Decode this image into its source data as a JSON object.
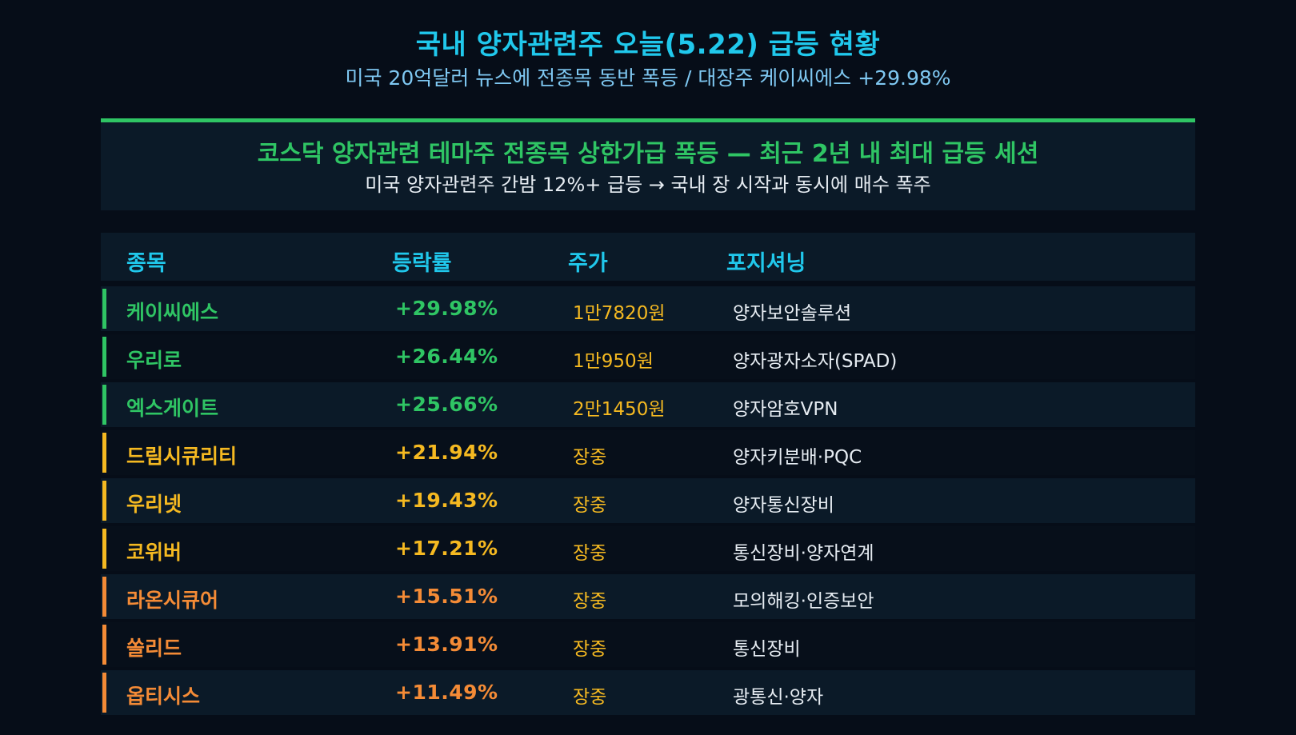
{
  "title": "국내 양자관련주 오늘(5.22) 급등 현황",
  "subtitle": "미국 20억달러 뉴스에 전종목 동반 폭등 / 대장주 케이씨에스 +29.98%",
  "banner": {
    "title": "코스닥 양자관련 테마주 전종목 상한가급 폭등 — 최근 2년 내 최대 급등 세션",
    "subtitle": "미국 양자관련주 간밤 12%+ 급등 → 국내 장 시작과 동시에 매수 폭주",
    "accent_color": "#2fc564"
  },
  "table": {
    "headers": {
      "name": "종목",
      "rate": "등락률",
      "price": "주가",
      "position": "포지셔닝"
    },
    "rows": [
      {
        "name": "케이씨에스",
        "rate": "+29.98%",
        "price": "1만7820원",
        "position": "양자보안솔루션",
        "color": "#2fc564"
      },
      {
        "name": "우리로",
        "rate": "+26.44%",
        "price": "1만950원",
        "position": "양자광자소자(SPAD)",
        "color": "#2fc564"
      },
      {
        "name": "엑스게이트",
        "rate": "+25.66%",
        "price": "2만1450원",
        "position": "양자암호VPN",
        "color": "#2fc564"
      },
      {
        "name": "드림시큐리티",
        "rate": "+21.94%",
        "price": "장중",
        "position": "양자키분배·PQC",
        "color": "#f5b921"
      },
      {
        "name": "우리넷",
        "rate": "+19.43%",
        "price": "장중",
        "position": "양자통신장비",
        "color": "#f5b921"
      },
      {
        "name": "코위버",
        "rate": "+17.21%",
        "price": "장중",
        "position": "통신장비·양자연계",
        "color": "#f5b921"
      },
      {
        "name": "라온시큐어",
        "rate": "+15.51%",
        "price": "장중",
        "position": "모의해킹·인증보안",
        "color": "#f48b36"
      },
      {
        "name": "쏠리드",
        "rate": "+13.91%",
        "price": "장중",
        "position": "통신장비",
        "color": "#f48b36"
      },
      {
        "name": "옵티시스",
        "rate": "+11.49%",
        "price": "장중",
        "position": "광통신·양자",
        "color": "#f48b36"
      }
    ],
    "price_color": "#f5b921"
  }
}
